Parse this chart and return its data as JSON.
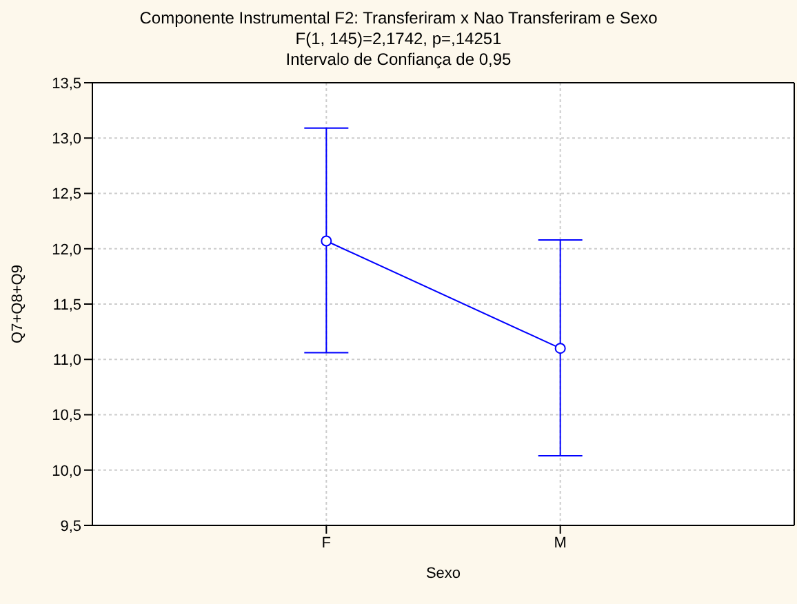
{
  "chart_data": {
    "type": "line",
    "title": "Componente Instrumental F2: Transferiram x Nao Transferiram e Sexo",
    "subtitle": "F(1, 145)=2,1742, p=,14251",
    "annotations": [
      "Intervalo de Confiança de 0,95"
    ],
    "xlabel": "Sexo",
    "ylabel": "Q7+Q8+Q9",
    "categories": [
      "F",
      "M"
    ],
    "series": [
      {
        "color": "#0000ff",
        "values": [
          12.07,
          11.1
        ],
        "errors": [
          [
            11.06,
            13.09
          ],
          [
            10.13,
            12.08
          ]
        ]
      }
    ],
    "ylim": [
      9.5,
      13.5
    ],
    "yticks": [
      {
        "value": 9.5,
        "label": "9,5"
      },
      {
        "value": 10,
        "label": "10,0"
      },
      {
        "value": 10.5,
        "label": "10,5"
      },
      {
        "value": 11,
        "label": "11,0"
      },
      {
        "value": 11.5,
        "label": "11,5"
      },
      {
        "value": 12,
        "label": "12,0"
      },
      {
        "value": 12.5,
        "label": "12,5"
      },
      {
        "value": 13,
        "label": "13,0"
      },
      {
        "value": 13.5,
        "label": "13,5"
      }
    ],
    "grid": true,
    "marker": "circle",
    "line_style": "solid"
  }
}
